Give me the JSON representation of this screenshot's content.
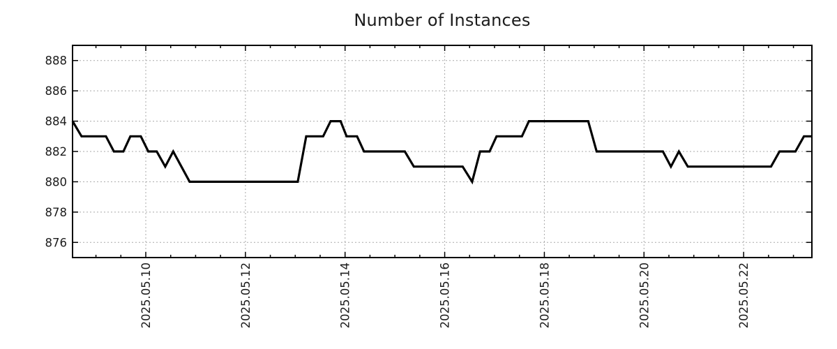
{
  "chart_data": {
    "type": "line",
    "title": "Number of Instances",
    "x_axis": {
      "unit": "day of 2025-05",
      "range_days": [
        8.53,
        23.37
      ],
      "minor_tick_interval_days": 0.5,
      "label_orientation": "rotated-90-ccw",
      "ticks": [
        {
          "day": 10,
          "label": "2025.05.10"
        },
        {
          "day": 12,
          "label": "2025.05.12"
        },
        {
          "day": 14,
          "label": "2025.05.14"
        },
        {
          "day": 16,
          "label": "2025.05.16"
        },
        {
          "day": 18,
          "label": "2025.05.18"
        },
        {
          "day": 20,
          "label": "2025.05.20"
        },
        {
          "day": 22,
          "label": "2025.05.22"
        }
      ]
    },
    "y_axis": {
      "range": [
        875,
        889
      ],
      "ticks": [
        {
          "value": 876,
          "label": "876"
        },
        {
          "value": 878,
          "label": "878"
        },
        {
          "value": 880,
          "label": "880"
        },
        {
          "value": 882,
          "label": "882"
        },
        {
          "value": 884,
          "label": "884"
        },
        {
          "value": 886,
          "label": "886"
        },
        {
          "value": 888,
          "label": "888"
        }
      ]
    },
    "grid": {
      "style": "dotted",
      "color": "#a9a9a9"
    },
    "colors": {
      "axis": "#000000",
      "line": "#000000",
      "tick_text": "#1c1c1c",
      "title_text": "#1c1c1c"
    },
    "series": [
      {
        "name": "Number of Instances",
        "color": "#000000",
        "line_width": 3.2,
        "points": [
          [
            8.53,
            884
          ],
          [
            8.71,
            883
          ],
          [
            9.2,
            883
          ],
          [
            9.36,
            882
          ],
          [
            9.55,
            882
          ],
          [
            9.69,
            883
          ],
          [
            9.9,
            883
          ],
          [
            10.05,
            882
          ],
          [
            10.22,
            882
          ],
          [
            10.39,
            881
          ],
          [
            10.55,
            882
          ],
          [
            10.88,
            880
          ],
          [
            13.05,
            880
          ],
          [
            13.22,
            883
          ],
          [
            13.56,
            883
          ],
          [
            13.71,
            884
          ],
          [
            13.91,
            884
          ],
          [
            14.03,
            883
          ],
          [
            14.24,
            883
          ],
          [
            14.38,
            882
          ],
          [
            15.2,
            882
          ],
          [
            15.38,
            881
          ],
          [
            16.36,
            881
          ],
          [
            16.55,
            880
          ],
          [
            16.71,
            882
          ],
          [
            16.9,
            882
          ],
          [
            17.04,
            883
          ],
          [
            17.55,
            883
          ],
          [
            17.69,
            884
          ],
          [
            18.88,
            884
          ],
          [
            19.05,
            882
          ],
          [
            20.38,
            882
          ],
          [
            20.54,
            881
          ],
          [
            20.7,
            882
          ],
          [
            20.88,
            881
          ],
          [
            22.55,
            881
          ],
          [
            22.72,
            882
          ],
          [
            23.04,
            882
          ],
          [
            23.21,
            883
          ],
          [
            23.37,
            883
          ]
        ]
      }
    ]
  }
}
